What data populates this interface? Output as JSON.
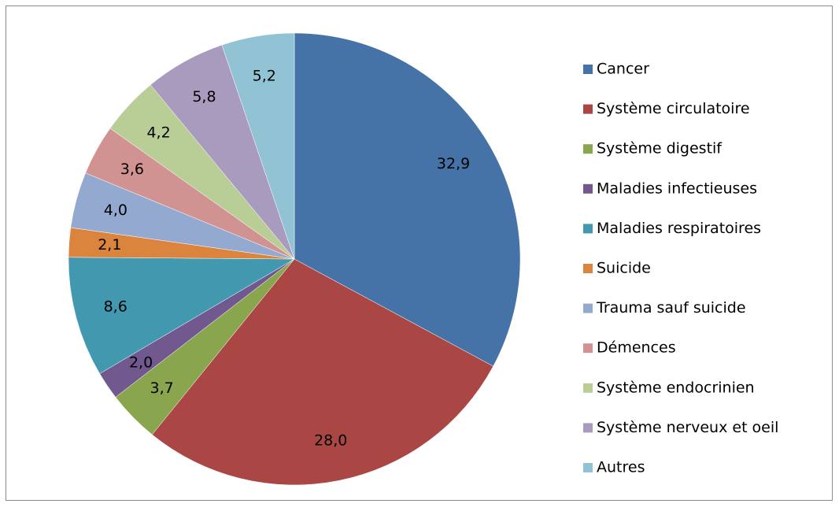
{
  "chart_data": {
    "type": "pie",
    "categories": [
      "Cancer",
      "Système circulatoire",
      "Système digestif",
      "Maladies infectieuses",
      "Maladies respiratoires",
      "Suicide",
      "Trauma sauf suicide",
      "Démences",
      "Système endocrinien",
      "Système nerveux  et oeil",
      "Autres"
    ],
    "values": [
      32.9,
      28.0,
      3.7,
      2.0,
      8.6,
      2.1,
      4.0,
      3.6,
      4.2,
      5.8,
      5.2
    ],
    "value_labels": [
      "32,9",
      "28,0",
      "3,7",
      "2,0",
      "8,6",
      "2,1",
      "4,0",
      "3,6",
      "4,2",
      "5,8",
      "5,2"
    ],
    "colors": [
      "#4572a7",
      "#aa4643",
      "#89a54e",
      "#71588f",
      "#4198af",
      "#db843d",
      "#93a9cf",
      "#d19392",
      "#b9cd96",
      "#a99bbd",
      "#92c3d4"
    ],
    "legend": "right"
  }
}
